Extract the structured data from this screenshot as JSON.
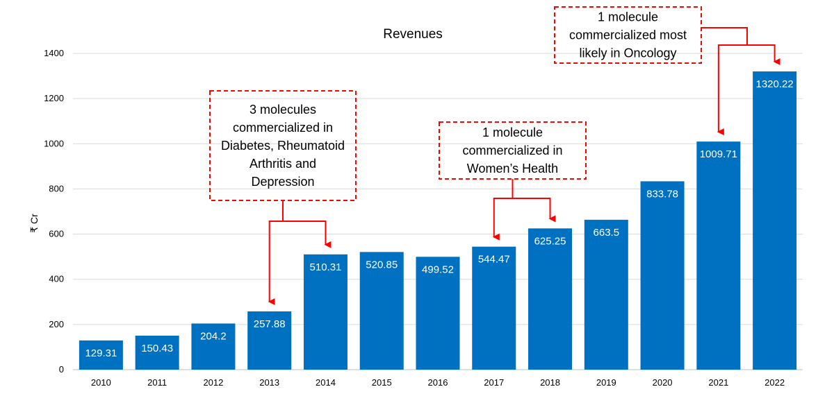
{
  "chart_data": {
    "type": "bar",
    "title": "Revenues",
    "xlabel": "",
    "ylabel": "₹ Cr",
    "categories": [
      "2010",
      "2011",
      "2012",
      "2013",
      "2014",
      "2015",
      "2016",
      "2017",
      "2018",
      "2019",
      "2020",
      "2021",
      "2022"
    ],
    "values": [
      129.31,
      150.43,
      204.2,
      257.88,
      510.31,
      520.85,
      499.52,
      544.47,
      625.25,
      663.5,
      833.78,
      1009.71,
      1320.22
    ],
    "data_labels": [
      "129.31",
      "150.43",
      "204.2",
      "257.88",
      "510.31",
      "520.85",
      "499.52",
      "544.47",
      "625.25",
      "663.5",
      "833.78",
      "1009.71",
      "1320.22"
    ],
    "ylim": [
      0,
      1400
    ],
    "yticks": [
      0,
      200,
      400,
      600,
      800,
      1000,
      1200,
      1400
    ],
    "ytick_labels": [
      "0",
      "200",
      "400",
      "600",
      "800",
      "1000",
      "1200",
      "1400"
    ],
    "grid": true,
    "bar_color": "#0070C0",
    "annotations": [
      {
        "lines": [
          "3 molecules",
          "commercialized in",
          "Diabetes, Rheumatoid",
          "Arthritis and",
          "Depression"
        ],
        "points_to": [
          "2013",
          "2014"
        ]
      },
      {
        "lines": [
          "1 molecule",
          "commercialized in",
          "Women’s Health"
        ],
        "points_to": [
          "2017",
          "2018"
        ]
      },
      {
        "lines": [
          "1 molecule",
          "commercialized most",
          "likely in Oncology"
        ],
        "points_to": [
          "2021",
          "2022"
        ]
      }
    ],
    "annotation_color": "#FF0000"
  }
}
